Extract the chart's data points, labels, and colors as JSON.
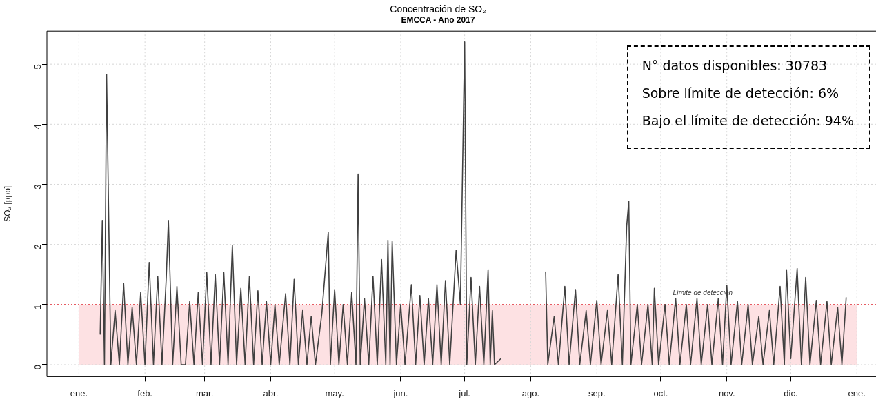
{
  "chart_data": {
    "type": "line",
    "title": "Concentración de SO₂",
    "subtitle": "EMCCA - Año 2017",
    "ylabel": "SO₂ [ppb]",
    "xlim": [
      "2016-12-17",
      "2018-01-10"
    ],
    "xticks": [
      {
        "value": "2017-01-01",
        "label": "ene."
      },
      {
        "value": "2017-02-01",
        "label": "feb."
      },
      {
        "value": "2017-03-01",
        "label": "mar."
      },
      {
        "value": "2017-04-01",
        "label": "abr."
      },
      {
        "value": "2017-05-01",
        "label": "may."
      },
      {
        "value": "2017-06-01",
        "label": "jun."
      },
      {
        "value": "2017-07-01",
        "label": "jul."
      },
      {
        "value": "2017-08-01",
        "label": "ago."
      },
      {
        "value": "2017-09-01",
        "label": "sep."
      },
      {
        "value": "2017-10-01",
        "label": "oct."
      },
      {
        "value": "2017-11-01",
        "label": "nov."
      },
      {
        "value": "2017-12-01",
        "label": "dic."
      },
      {
        "value": "2018-01-01",
        "label": "ene."
      }
    ],
    "ylim": [
      -0.2,
      5.55
    ],
    "yticks": [
      0,
      1,
      2,
      3,
      4,
      5
    ],
    "grid": true,
    "legend": false,
    "marker": "none",
    "line_style": "solid",
    "ref_lines": [
      {
        "axis": "y",
        "value": 1,
        "label": "Límite de detección",
        "color": "#e8303a",
        "line_style": "dotted"
      }
    ],
    "bands": [
      {
        "axis": "y",
        "from": 0,
        "to": 1,
        "color": "#fde1e3"
      }
    ],
    "annotations": [
      "N° datos disponibles: 30783",
      "Sobre límite de detección: 6%",
      "Bajo el límite de detección: 94%"
    ],
    "x": [
      "2017-01-11",
      "2017-01-12",
      "2017-01-13",
      "2017-01-14",
      "2017-01-16",
      "2017-01-18",
      "2017-01-20",
      "2017-01-22",
      "2017-01-24",
      "2017-01-26",
      "2017-01-28",
      "2017-01-30",
      "2017-02-01",
      "2017-02-03",
      "2017-02-05",
      "2017-02-07",
      "2017-02-09",
      "2017-02-11",
      "2017-02-12",
      "2017-02-14",
      "2017-02-16",
      "2017-02-18",
      "2017-02-20",
      "2017-02-22",
      "2017-02-24",
      "2017-02-26",
      "2017-02-28",
      "2017-03-02",
      "2017-03-04",
      "2017-03-06",
      "2017-03-08",
      "2017-03-10",
      "2017-03-12",
      "2017-03-14",
      "2017-03-16",
      "2017-03-18",
      "2017-03-20",
      "2017-03-22",
      "2017-03-24",
      "2017-03-26",
      "2017-03-28",
      "2017-03-30",
      "2017-04-01",
      "2017-04-03",
      "2017-04-05",
      "2017-04-08",
      "2017-04-10",
      "2017-04-12",
      "2017-04-14",
      "2017-04-16",
      "2017-04-18",
      "2017-04-20",
      "2017-04-22",
      "2017-04-25",
      "2017-04-28",
      "2017-04-29",
      "2017-05-01",
      "2017-05-03",
      "2017-05-05",
      "2017-05-07",
      "2017-05-09",
      "2017-05-11",
      "2017-05-12",
      "2017-05-13",
      "2017-05-15",
      "2017-05-17",
      "2017-05-19",
      "2017-05-21",
      "2017-05-23",
      "2017-05-25",
      "2017-05-26",
      "2017-05-27",
      "2017-05-28",
      "2017-05-30",
      "2017-06-01",
      "2017-06-03",
      "2017-06-06",
      "2017-06-08",
      "2017-06-10",
      "2017-06-12",
      "2017-06-14",
      "2017-06-16",
      "2017-06-18",
      "2017-06-20",
      "2017-06-22",
      "2017-06-24",
      "2017-06-27",
      "2017-06-29",
      "2017-07-01",
      "2017-07-02",
      "2017-07-04",
      "2017-07-06",
      "2017-07-08",
      "2017-07-10",
      "2017-07-12",
      "2017-07-13",
      "2017-07-14",
      "2017-07-15",
      "2017-07-18",
      "2017-07-19",
      "2017-08-08",
      "2017-08-09",
      "2017-08-12",
      "2017-08-14",
      "2017-08-17",
      "2017-08-19",
      "2017-08-22",
      "2017-08-24",
      "2017-08-27",
      "2017-08-29",
      "2017-09-01",
      "2017-09-03",
      "2017-09-06",
      "2017-09-08",
      "2017-09-11",
      "2017-09-13",
      "2017-09-15",
      "2017-09-16",
      "2017-09-17",
      "2017-09-20",
      "2017-09-22",
      "2017-09-25",
      "2017-09-27",
      "2017-09-28",
      "2017-09-30",
      "2017-10-03",
      "2017-10-05",
      "2017-10-08",
      "2017-10-10",
      "2017-10-13",
      "2017-10-15",
      "2017-10-18",
      "2017-10-20",
      "2017-10-23",
      "2017-10-25",
      "2017-10-28",
      "2017-10-30",
      "2017-11-01",
      "2017-11-03",
      "2017-11-06",
      "2017-11-08",
      "2017-11-11",
      "2017-11-13",
      "2017-11-16",
      "2017-11-18",
      "2017-11-21",
      "2017-11-23",
      "2017-11-26",
      "2017-11-28",
      "2017-11-29",
      "2017-12-01",
      "2017-12-04",
      "2017-12-06",
      "2017-12-08",
      "2017-12-10",
      "2017-12-13",
      "2017-12-15",
      "2017-12-18",
      "2017-12-20",
      "2017-12-23",
      "2017-12-25",
      "2017-12-27"
    ],
    "series": [
      {
        "color": "#404040",
        "values": [
          0.5,
          2.4,
          0.0,
          4.83,
          0.0,
          0.9,
          0.0,
          1.35,
          0.0,
          0.95,
          0.0,
          1.2,
          0.0,
          1.7,
          0.0,
          1.47,
          0.0,
          1.45,
          2.4,
          0.0,
          1.3,
          0.0,
          0.0,
          1.05,
          0.0,
          1.2,
          0.0,
          1.53,
          0.0,
          1.5,
          0.0,
          1.53,
          0.0,
          1.98,
          0.0,
          1.27,
          0.0,
          1.47,
          0.0,
          1.23,
          0.0,
          1.05,
          0.0,
          1.0,
          0.0,
          1.18,
          0.0,
          1.42,
          0.0,
          0.9,
          0.0,
          0.8,
          0.0,
          0.85,
          2.2,
          0.0,
          1.25,
          0.0,
          1.0,
          0.0,
          1.2,
          0.0,
          3.17,
          0.0,
          1.1,
          0.0,
          1.47,
          0.0,
          1.75,
          0.0,
          2.07,
          0.0,
          2.05,
          0.0,
          1.0,
          0.0,
          1.33,
          0.0,
          1.15,
          0.0,
          1.1,
          0.0,
          1.33,
          0.0,
          1.4,
          0.0,
          1.9,
          1.0,
          5.37,
          0.0,
          1.45,
          0.0,
          1.3,
          0.0,
          1.58,
          0.0,
          0.9,
          0.0,
          0.1,
          null,
          1.55,
          0.0,
          0.8,
          0.0,
          1.3,
          0.0,
          1.25,
          0.0,
          0.9,
          0.0,
          1.07,
          0.0,
          0.9,
          0.0,
          1.5,
          0.0,
          2.3,
          2.72,
          0.0,
          1.0,
          0.0,
          1.0,
          0.0,
          1.27,
          0.0,
          1.0,
          0.0,
          1.1,
          0.0,
          1.0,
          0.0,
          1.1,
          0.0,
          1.0,
          0.0,
          1.1,
          0.0,
          1.32,
          0.0,
          1.05,
          0.0,
          1.0,
          0.0,
          0.8,
          0.0,
          0.9,
          0.0,
          1.3,
          0.0,
          1.58,
          0.1,
          1.6,
          0.0,
          1.45,
          0.0,
          1.07,
          0.0,
          1.05,
          0.0,
          0.95,
          0.0,
          1.12
        ]
      }
    ]
  }
}
